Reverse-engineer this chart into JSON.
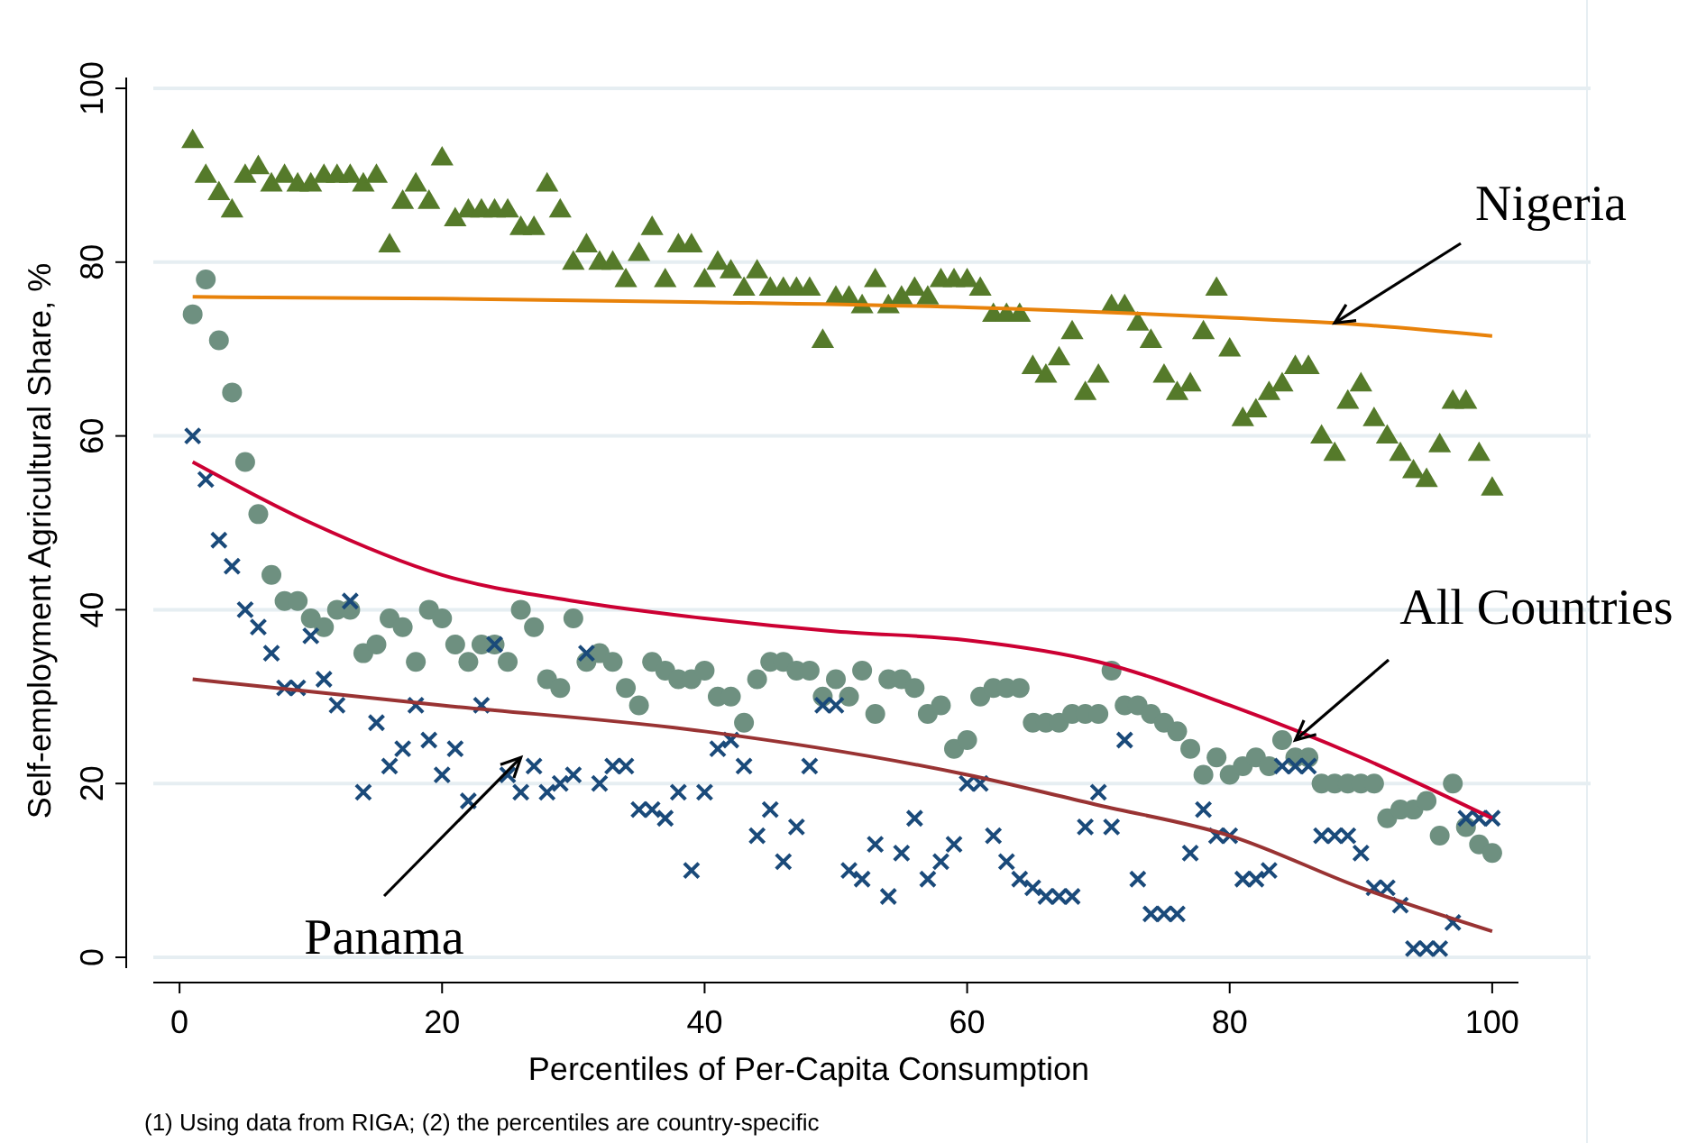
{
  "chart_data": {
    "type": "scatter",
    "xlabel": "Percentiles of Per-Capita Consumption",
    "ylabel": "Self-employment Agricultural Share, %",
    "xlim": [
      -2,
      102
    ],
    "ylim": [
      0,
      100
    ],
    "xticks": [
      0,
      20,
      40,
      60,
      80,
      100
    ],
    "yticks": [
      0,
      20,
      40,
      60,
      80,
      100
    ],
    "grid": "y",
    "annotations": [
      {
        "text": "Nigeria",
        "x": 88,
        "y": 73
      },
      {
        "text": "All Countries",
        "x": 85,
        "y": 25
      },
      {
        "text": "Panama",
        "x": 26,
        "y": 23
      },
      "(1) Using data from RIGA; (2) the percentiles are country-specific"
    ],
    "series": [
      {
        "marker": "triangle",
        "color": "#557a2a",
        "x": [
          1,
          2,
          3,
          4,
          5,
          6,
          7,
          8,
          9,
          10,
          11,
          12,
          13,
          14,
          15,
          16,
          17,
          18,
          19,
          20,
          21,
          22,
          23,
          24,
          25,
          26,
          27,
          28,
          29,
          30,
          31,
          32,
          33,
          34,
          35,
          36,
          37,
          38,
          39,
          40,
          41,
          42,
          43,
          44,
          45,
          46,
          47,
          48,
          49,
          50,
          51,
          52,
          53,
          54,
          55,
          56,
          57,
          58,
          59,
          60,
          61,
          62,
          63,
          64,
          65,
          66,
          67,
          68,
          69,
          70,
          71,
          72,
          73,
          74,
          75,
          76,
          77,
          78,
          79,
          80,
          81,
          82,
          83,
          84,
          85,
          86,
          87,
          88,
          89,
          90,
          91,
          92,
          93,
          94,
          95,
          96,
          97,
          98,
          99,
          100
        ],
        "values": [
          94,
          90,
          88,
          86,
          90,
          91,
          89,
          90,
          89,
          89,
          90,
          90,
          90,
          89,
          90,
          82,
          87,
          89,
          87,
          92,
          85,
          86,
          86,
          86,
          86,
          84,
          84,
          89,
          86,
          80,
          82,
          80,
          80,
          78,
          81,
          84,
          78,
          82,
          82,
          78,
          80,
          79,
          77,
          79,
          77,
          77,
          77,
          77,
          71,
          76,
          76,
          75,
          78,
          75,
          76,
          77,
          76,
          78,
          78,
          78,
          77,
          74,
          74,
          74,
          68,
          67,
          69,
          72,
          65,
          67,
          75,
          75,
          73,
          71,
          67,
          65,
          66,
          72,
          77,
          70,
          62,
          63,
          65,
          66,
          68,
          68,
          60,
          58,
          64,
          66,
          62,
          60,
          58,
          56,
          55,
          59,
          64,
          64,
          58,
          54
        ]
      },
      {
        "marker": "circle",
        "color": "#6e9080",
        "x": [
          1,
          2,
          3,
          4,
          5,
          6,
          7,
          8,
          9,
          10,
          11,
          12,
          13,
          14,
          15,
          16,
          17,
          18,
          19,
          20,
          21,
          22,
          23,
          24,
          25,
          26,
          27,
          28,
          29,
          30,
          31,
          32,
          33,
          34,
          35,
          36,
          37,
          38,
          39,
          40,
          41,
          42,
          43,
          44,
          45,
          46,
          47,
          48,
          49,
          50,
          51,
          52,
          53,
          54,
          55,
          56,
          57,
          58,
          59,
          60,
          61,
          62,
          63,
          64,
          65,
          66,
          67,
          68,
          69,
          70,
          71,
          72,
          73,
          74,
          75,
          76,
          77,
          78,
          79,
          80,
          81,
          82,
          83,
          84,
          85,
          86,
          87,
          88,
          89,
          90,
          91,
          92,
          93,
          94,
          95,
          96,
          97,
          98,
          99,
          100
        ],
        "values": [
          74,
          78,
          71,
          65,
          57,
          51,
          44,
          41,
          41,
          39,
          38,
          40,
          40,
          35,
          36,
          39,
          38,
          34,
          40,
          39,
          36,
          34,
          36,
          36,
          34,
          40,
          38,
          32,
          31,
          39,
          34,
          35,
          34,
          31,
          29,
          34,
          33,
          32,
          32,
          33,
          30,
          30,
          27,
          32,
          34,
          34,
          33,
          33,
          30,
          32,
          30,
          33,
          28,
          32,
          32,
          31,
          28,
          29,
          24,
          25,
          30,
          31,
          31,
          31,
          27,
          27,
          27,
          28,
          28,
          28,
          33,
          29,
          29,
          28,
          27,
          26,
          24,
          21,
          23,
          21,
          22,
          23,
          22,
          25,
          23,
          23,
          20,
          20,
          20,
          20,
          20,
          16,
          17,
          17,
          18,
          14,
          20,
          15,
          13,
          12
        ]
      },
      {
        "marker": "cross",
        "color": "#1a4a7a",
        "x": [
          1,
          2,
          3,
          4,
          5,
          6,
          7,
          8,
          9,
          10,
          11,
          12,
          13,
          14,
          15,
          16,
          17,
          18,
          19,
          20,
          21,
          22,
          23,
          24,
          25,
          26,
          27,
          28,
          29,
          30,
          31,
          32,
          33,
          34,
          35,
          36,
          37,
          38,
          39,
          40,
          41,
          42,
          43,
          44,
          45,
          46,
          47,
          48,
          49,
          50,
          51,
          52,
          53,
          54,
          55,
          56,
          57,
          58,
          59,
          60,
          61,
          62,
          63,
          64,
          65,
          66,
          67,
          68,
          69,
          70,
          71,
          72,
          73,
          74,
          75,
          76,
          77,
          78,
          79,
          80,
          81,
          82,
          83,
          84,
          85,
          86,
          87,
          88,
          89,
          90,
          91,
          92,
          93,
          94,
          95,
          96,
          97,
          98,
          99,
          100
        ],
        "values": [
          60,
          55,
          48,
          45,
          40,
          38,
          35,
          31,
          31,
          37,
          32,
          29,
          41,
          19,
          27,
          22,
          24,
          29,
          25,
          21,
          24,
          18,
          29,
          36,
          21,
          19,
          22,
          19,
          20,
          21,
          35,
          20,
          22,
          22,
          17,
          17,
          16,
          19,
          10,
          19,
          24,
          25,
          22,
          14,
          17,
          11,
          15,
          22,
          29,
          29,
          10,
          9,
          13,
          7,
          12,
          16,
          9,
          11,
          13,
          20,
          20,
          14,
          11,
          9,
          8,
          7,
          7,
          7,
          15,
          19,
          15,
          25,
          9,
          5,
          5,
          5,
          12,
          17,
          14,
          14,
          9,
          9,
          10,
          22,
          22,
          22,
          14,
          14,
          14,
          12,
          8,
          8,
          6,
          1,
          1,
          1,
          4,
          16,
          16,
          16
        ]
      },
      {
        "type": "line",
        "color": "#e8820a",
        "x": [
          1,
          20,
          40,
          60,
          80,
          90,
          100
        ],
        "values": [
          76,
          75.8,
          75.4,
          74.8,
          73.6,
          72.8,
          71.5
        ]
      },
      {
        "type": "line",
        "color": "#cc0033",
        "x": [
          1,
          10,
          20,
          30,
          40,
          50,
          60,
          70,
          80,
          90,
          100
        ],
        "values": [
          57,
          50,
          44,
          41,
          39,
          37.5,
          36.5,
          34,
          29,
          23,
          16
        ]
      },
      {
        "type": "line",
        "color": "#993333",
        "x": [
          1,
          20,
          40,
          60,
          70,
          80,
          90,
          100
        ],
        "values": [
          32,
          29,
          26,
          21,
          17.5,
          14,
          8,
          3
        ]
      }
    ]
  }
}
